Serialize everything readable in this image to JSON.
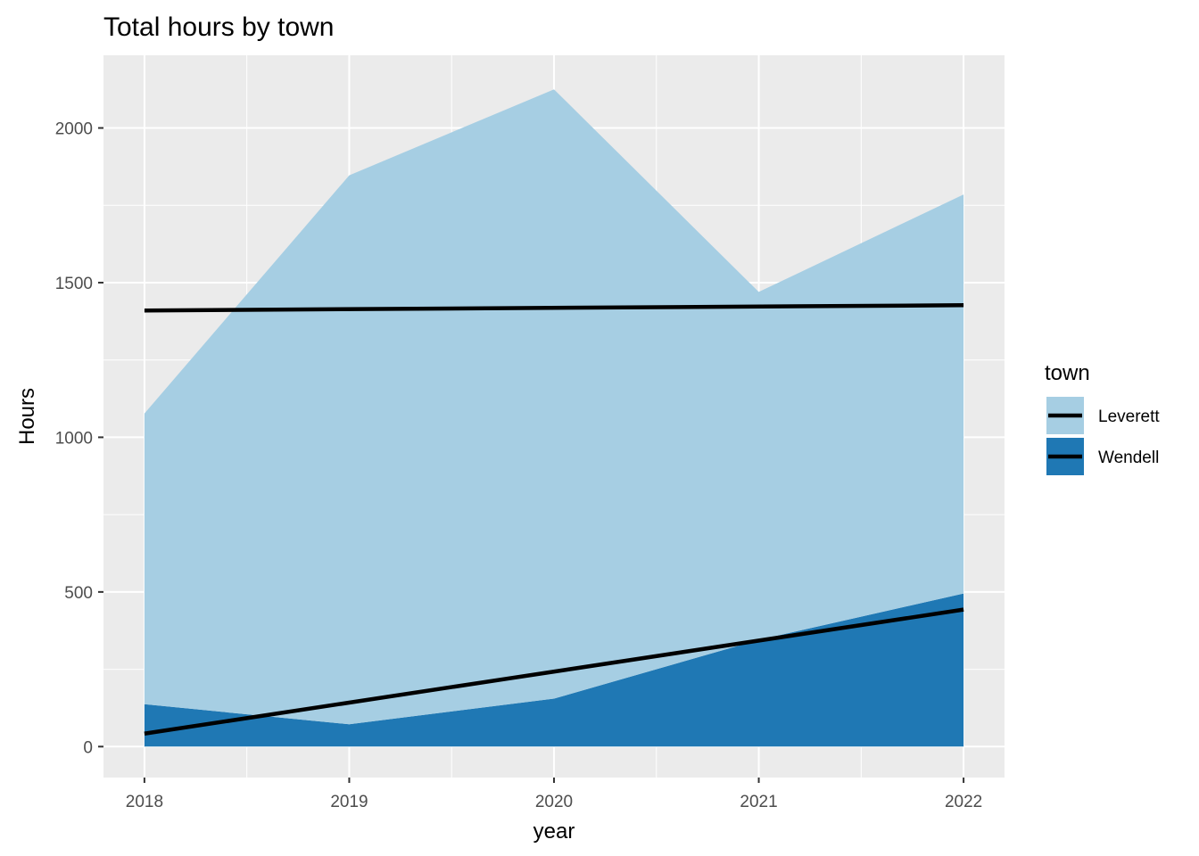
{
  "chart_data": {
    "type": "area",
    "title": "Total hours by town",
    "xlabel": "year",
    "ylabel": "Hours",
    "x": [
      2018,
      2019,
      2020,
      2021,
      2022
    ],
    "x_ticks": [
      "2018",
      "2019",
      "2020",
      "2021",
      "2022"
    ],
    "y_ticks": [
      "0",
      "500",
      "1000",
      "1500",
      "2000"
    ],
    "xlim": [
      2017.8,
      2022.2
    ],
    "ylim": [
      -100,
      2235
    ],
    "grid": true,
    "stacked": true,
    "series": [
      {
        "name": "Leverett",
        "values": [
          940,
          1775,
          1970,
          1125,
          1290
        ],
        "color": "#a6cee3"
      },
      {
        "name": "Wendell",
        "values": [
          137,
          72,
          155,
          345,
          495
        ],
        "color": "#1f78b4"
      }
    ],
    "trend_lines": [
      {
        "series": "Leverett",
        "start": 1410,
        "end": 1427,
        "color": "#000000"
      },
      {
        "series": "Wendell",
        "start": 42,
        "end": 443,
        "color": "#000000"
      }
    ],
    "legend": {
      "title": "town",
      "position": "right",
      "entries": [
        "Leverett",
        "Wendell"
      ]
    }
  }
}
